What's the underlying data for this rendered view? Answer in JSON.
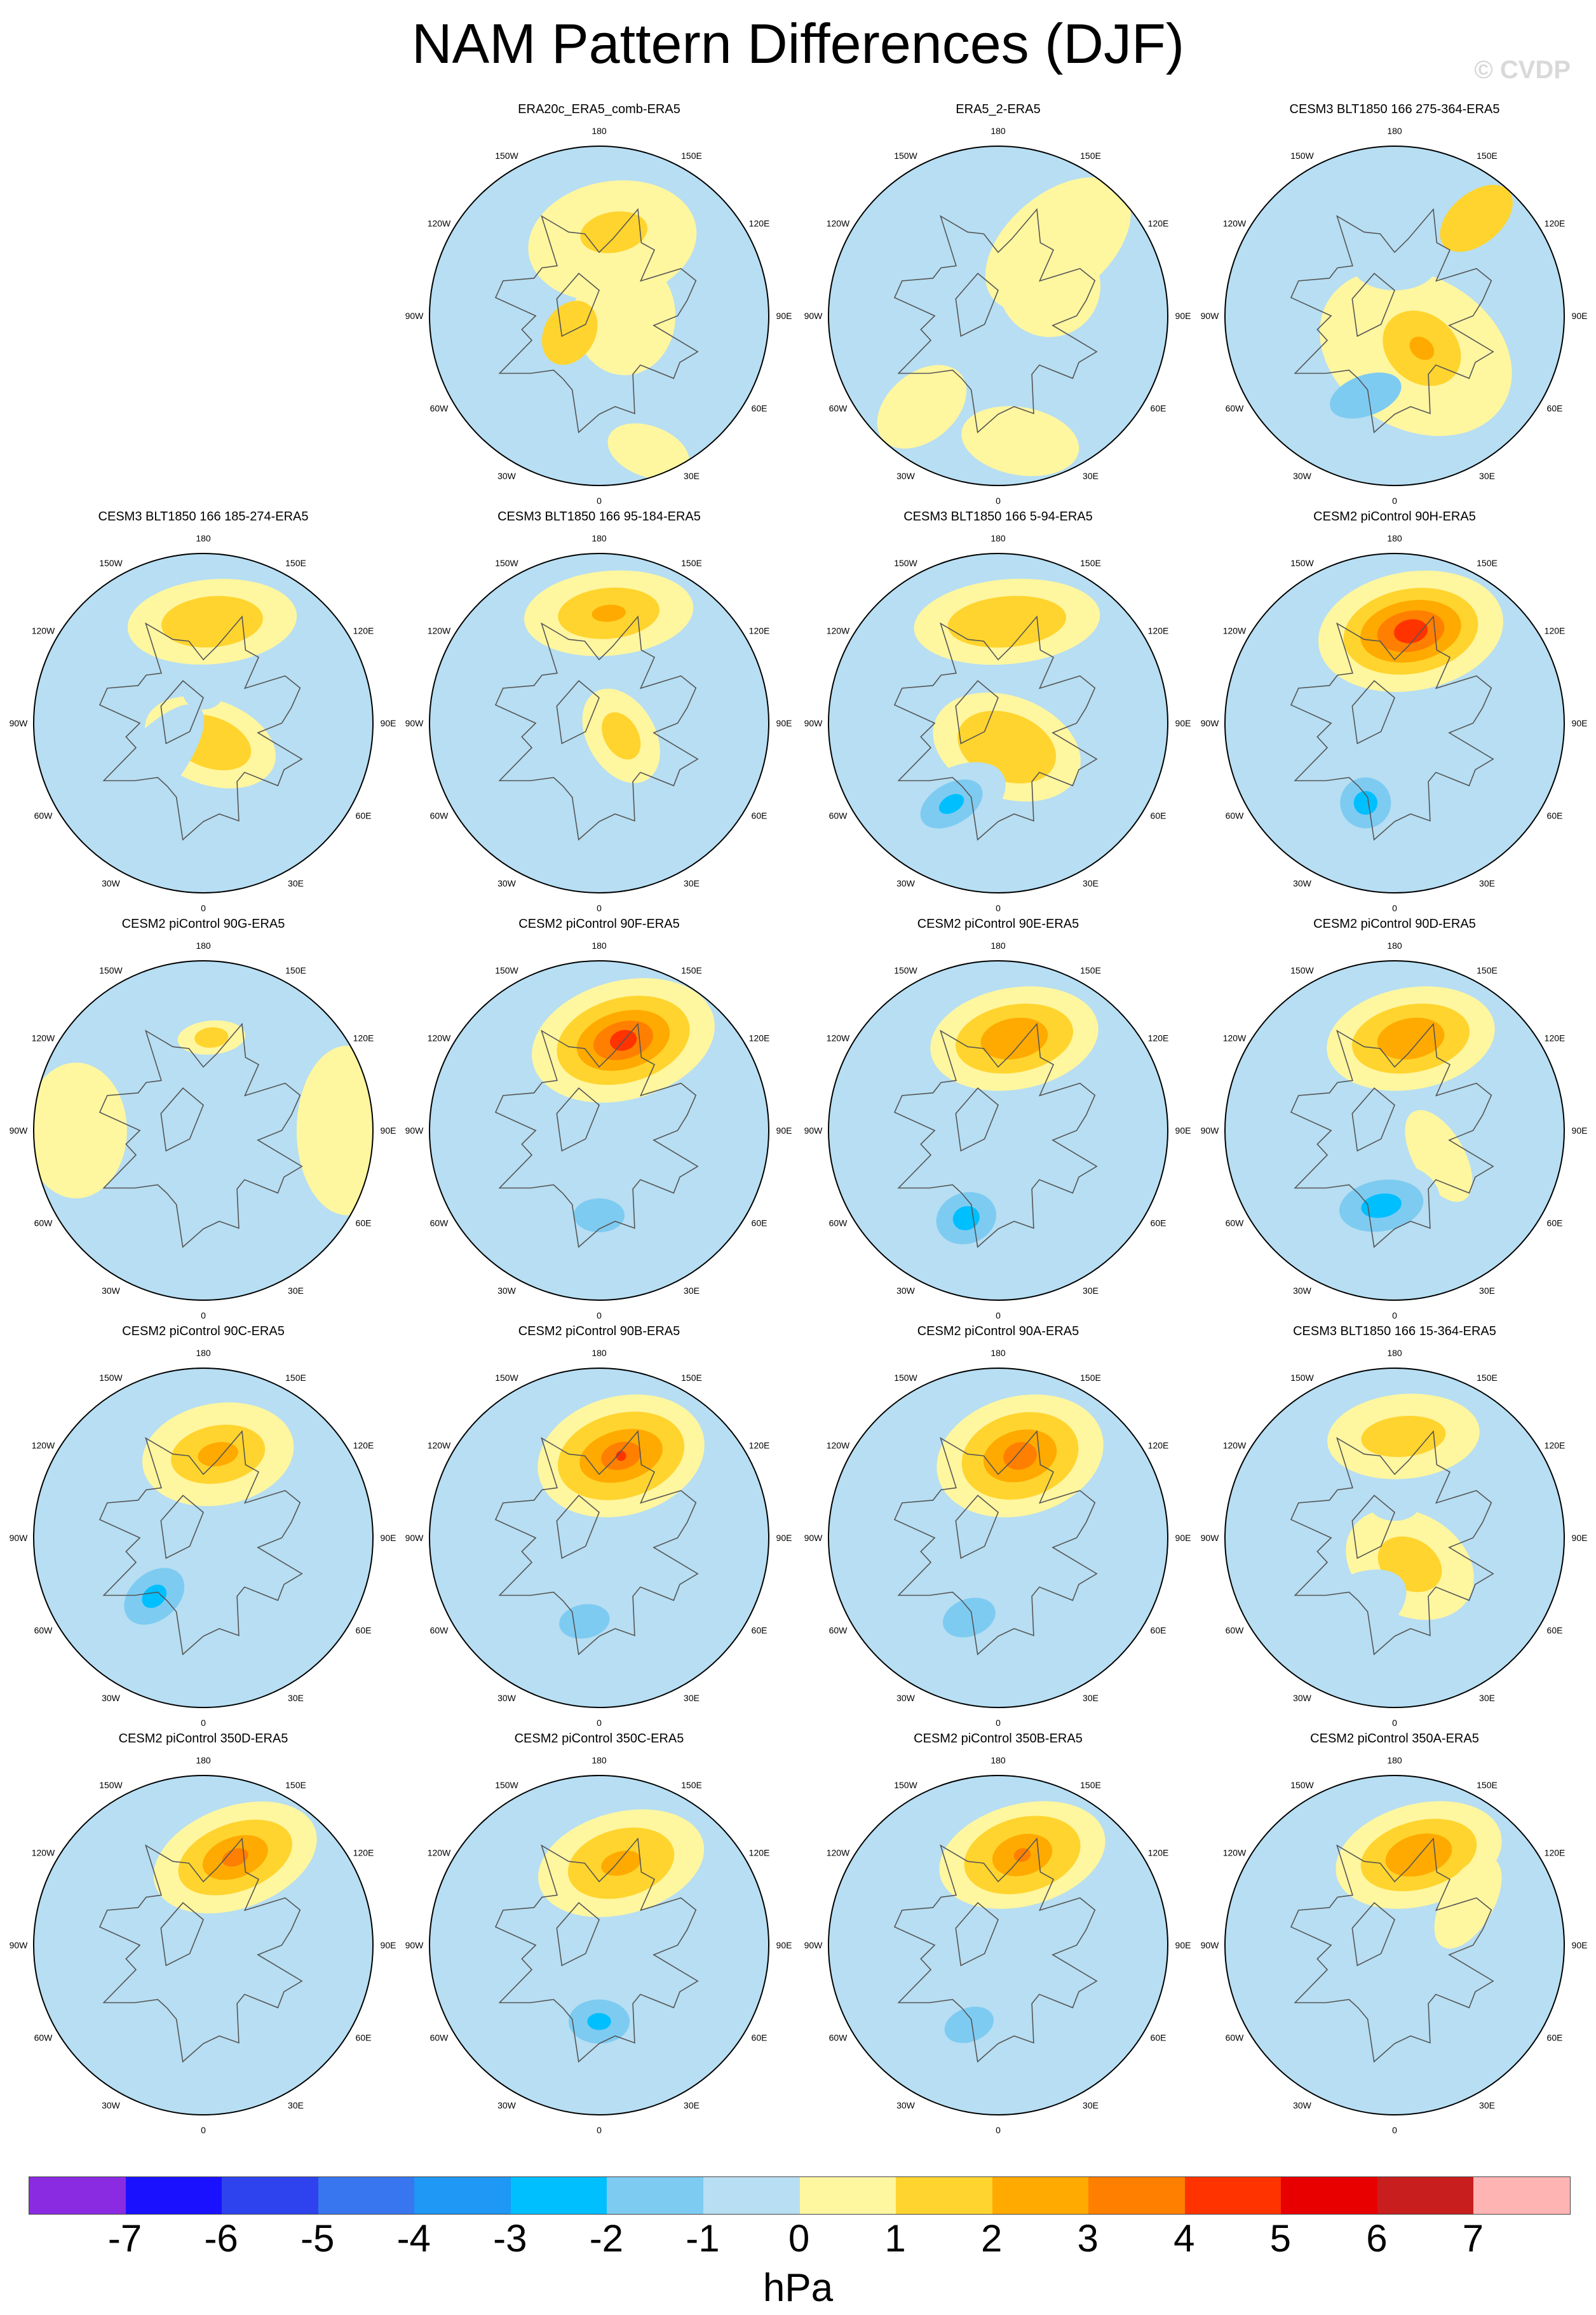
{
  "title": "NAM Pattern Differences (DJF)",
  "watermark": "© CVDP",
  "units": "hPa",
  "longitude_labels": [
    "180",
    "150E",
    "120E",
    "90E",
    "60E",
    "30E",
    "0",
    "30W",
    "60W",
    "90W",
    "120W",
    "150W"
  ],
  "colorbar": {
    "colors": [
      "#8a2be2",
      "#1a12ff",
      "#2e43ee",
      "#3776ee",
      "#1e97f5",
      "#00bfff",
      "#7ecbf2",
      "#b7def2",
      "#fff6a0",
      "#ffd42e",
      "#ffaa00",
      "#ff7f00",
      "#ff3300",
      "#e80000",
      "#c81e1e",
      "#ffb4b4"
    ],
    "labels": [
      "-7",
      "-6",
      "-5",
      "-4",
      "-3",
      "-2",
      "-1",
      "0",
      "1",
      "2",
      "3",
      "4",
      "5",
      "6",
      "7"
    ]
  },
  "panels": [
    {
      "title": "ERA20c_ERA5_comb-ERA5",
      "blobs": [
        {
          "lon": 170,
          "r": 0.45,
          "a": 0.5,
          "b": 0.35,
          "v": 1
        },
        {
          "lon": 170,
          "r": 0.5,
          "a": 0.2,
          "b": 0.12,
          "v": 2
        },
        {
          "lon": 90,
          "r": 0.15,
          "a": 0.35,
          "b": 0.3,
          "v": 1
        },
        {
          "lon": 300,
          "r": 0.2,
          "a": 0.2,
          "b": 0.15,
          "v": 2
        },
        {
          "lon": 20,
          "r": 0.85,
          "a": 0.25,
          "b": 0.15,
          "v": 1
        }
      ]
    },
    {
      "title": "ERA5_2-ERA5",
      "blobs": [
        {
          "lon": 140,
          "r": 0.55,
          "a": 0.5,
          "b": 0.3,
          "v": 1
        },
        {
          "lon": 120,
          "r": 0.35,
          "a": 0.3,
          "b": 0.3,
          "v": 1
        },
        {
          "lon": 320,
          "r": 0.7,
          "a": 0.3,
          "b": 0.2,
          "v": 1
        },
        {
          "lon": 10,
          "r": 0.75,
          "a": 0.35,
          "b": 0.2,
          "v": 1
        }
      ]
    },
    {
      "title": "CESM3 BLT1850 166 275-364-ERA5",
      "blobs": [
        {
          "lon": 30,
          "r": 0.25,
          "a": 0.6,
          "b": 0.45,
          "v": 1
        },
        {
          "lon": 40,
          "r": 0.25,
          "a": 0.25,
          "b": 0.2,
          "v": 2
        },
        {
          "lon": 40,
          "r": 0.25,
          "a": 0.08,
          "b": 0.06,
          "v": 3
        },
        {
          "lon": 180,
          "r": 0.3,
          "a": 0.25,
          "b": 0.15,
          "v": -1
        },
        {
          "lon": 340,
          "r": 0.5,
          "a": 0.22,
          "b": 0.12,
          "v": -2
        },
        {
          "lon": 140,
          "r": 0.75,
          "a": 0.25,
          "b": 0.15,
          "v": 2
        }
      ]
    },
    {
      "title": "CESM3 BLT1850 166 185-274-ERA5",
      "blobs": [
        {
          "lon": 175,
          "r": 0.6,
          "a": 0.5,
          "b": 0.25,
          "v": 1
        },
        {
          "lon": 175,
          "r": 0.6,
          "a": 0.3,
          "b": 0.15,
          "v": 2
        },
        {
          "lon": 20,
          "r": 0.12,
          "a": 0.4,
          "b": 0.25,
          "v": 1
        },
        {
          "lon": 20,
          "r": 0.12,
          "a": 0.25,
          "b": 0.15,
          "v": 2
        },
        {
          "lon": 180,
          "r": 0.18,
          "a": 0.12,
          "b": 0.1,
          "v": -1
        },
        {
          "lon": 310,
          "r": 0.45,
          "a": 0.5,
          "b": 0.18,
          "v": -1
        }
      ]
    },
    {
      "title": "CESM3 BLT1850 166 95-184-ERA5",
      "blobs": [
        {
          "lon": 175,
          "r": 0.65,
          "a": 0.5,
          "b": 0.25,
          "v": 1
        },
        {
          "lon": 175,
          "r": 0.65,
          "a": 0.3,
          "b": 0.15,
          "v": 2
        },
        {
          "lon": 175,
          "r": 0.65,
          "a": 0.1,
          "b": 0.05,
          "v": 3
        },
        {
          "lon": 60,
          "r": 0.15,
          "a": 0.3,
          "b": 0.2,
          "v": 1
        },
        {
          "lon": 60,
          "r": 0.15,
          "a": 0.15,
          "b": 0.1,
          "v": 2
        },
        {
          "lon": 0,
          "r": 0.55,
          "a": 0.4,
          "b": 0.15,
          "v": -1
        }
      ]
    },
    {
      "title": "CESM3 BLT1850 166 5-94-ERA5",
      "blobs": [
        {
          "lon": 175,
          "r": 0.6,
          "a": 0.55,
          "b": 0.25,
          "v": 1
        },
        {
          "lon": 175,
          "r": 0.6,
          "a": 0.35,
          "b": 0.15,
          "v": 2
        },
        {
          "lon": 20,
          "r": 0.15,
          "a": 0.45,
          "b": 0.3,
          "v": 1
        },
        {
          "lon": 20,
          "r": 0.15,
          "a": 0.3,
          "b": 0.2,
          "v": 2
        },
        {
          "lon": 330,
          "r": 0.55,
          "a": 0.35,
          "b": 0.2,
          "v": -1
        },
        {
          "lon": 330,
          "r": 0.55,
          "a": 0.2,
          "b": 0.12,
          "v": -2
        },
        {
          "lon": 330,
          "r": 0.55,
          "a": 0.08,
          "b": 0.05,
          "v": -3
        }
      ]
    },
    {
      "title": "CESM2 piControl 90H-ERA5",
      "blobs": [
        {
          "lon": 170,
          "r": 0.55,
          "a": 0.55,
          "b": 0.35,
          "v": 1
        },
        {
          "lon": 170,
          "r": 0.55,
          "a": 0.4,
          "b": 0.25,
          "v": 2
        },
        {
          "lon": 170,
          "r": 0.55,
          "a": 0.3,
          "b": 0.18,
          "v": 3
        },
        {
          "lon": 170,
          "r": 0.55,
          "a": 0.2,
          "b": 0.12,
          "v": 4
        },
        {
          "lon": 170,
          "r": 0.55,
          "a": 0.1,
          "b": 0.07,
          "v": 5
        },
        {
          "lon": 340,
          "r": 0.5,
          "a": 0.3,
          "b": 0.3,
          "v": -1
        },
        {
          "lon": 340,
          "r": 0.5,
          "a": 0.15,
          "b": 0.15,
          "v": -2
        },
        {
          "lon": 340,
          "r": 0.5,
          "a": 0.07,
          "b": 0.07,
          "v": -3
        }
      ]
    },
    {
      "title": "CESM2 piControl 90G-ERA5",
      "blobs": [
        {
          "lon": 175,
          "r": 0.55,
          "a": 0.2,
          "b": 0.1,
          "v": 1
        },
        {
          "lon": 175,
          "r": 0.55,
          "a": 0.1,
          "b": 0.06,
          "v": 2
        },
        {
          "lon": 90,
          "r": 0.85,
          "a": 0.5,
          "b": 0.3,
          "v": 1
        },
        {
          "lon": 270,
          "r": 0.75,
          "a": 0.4,
          "b": 0.3,
          "v": 1
        },
        {
          "lon": 330,
          "r": 0.3,
          "a": 0.25,
          "b": 0.2,
          "v": -1
        }
      ]
    },
    {
      "title": "CESM2 piControl 90F-ERA5",
      "blobs": [
        {
          "lon": 165,
          "r": 0.55,
          "a": 0.55,
          "b": 0.35,
          "v": 1
        },
        {
          "lon": 165,
          "r": 0.55,
          "a": 0.4,
          "b": 0.25,
          "v": 2
        },
        {
          "lon": 165,
          "r": 0.55,
          "a": 0.28,
          "b": 0.17,
          "v": 3
        },
        {
          "lon": 165,
          "r": 0.55,
          "a": 0.18,
          "b": 0.11,
          "v": 4
        },
        {
          "lon": 165,
          "r": 0.55,
          "a": 0.08,
          "b": 0.06,
          "v": 5
        },
        {
          "lon": 0,
          "r": 0.5,
          "a": 0.3,
          "b": 0.2,
          "v": -1
        },
        {
          "lon": 0,
          "r": 0.5,
          "a": 0.15,
          "b": 0.1,
          "v": -2
        }
      ]
    },
    {
      "title": "CESM2 piControl 90E-ERA5",
      "blobs": [
        {
          "lon": 170,
          "r": 0.55,
          "a": 0.5,
          "b": 0.3,
          "v": 1
        },
        {
          "lon": 170,
          "r": 0.55,
          "a": 0.35,
          "b": 0.2,
          "v": 2
        },
        {
          "lon": 170,
          "r": 0.55,
          "a": 0.2,
          "b": 0.12,
          "v": 3
        },
        {
          "lon": 340,
          "r": 0.55,
          "a": 0.3,
          "b": 0.25,
          "v": -1
        },
        {
          "lon": 340,
          "r": 0.55,
          "a": 0.18,
          "b": 0.15,
          "v": -2
        },
        {
          "lon": 340,
          "r": 0.55,
          "a": 0.08,
          "b": 0.07,
          "v": -3
        }
      ]
    },
    {
      "title": "CESM2 piControl 90D-ERA5",
      "blobs": [
        {
          "lon": 170,
          "r": 0.55,
          "a": 0.5,
          "b": 0.3,
          "v": 1
        },
        {
          "lon": 170,
          "r": 0.55,
          "a": 0.35,
          "b": 0.2,
          "v": 2
        },
        {
          "lon": 170,
          "r": 0.55,
          "a": 0.2,
          "b": 0.12,
          "v": 3
        },
        {
          "lon": 60,
          "r": 0.3,
          "a": 0.3,
          "b": 0.15,
          "v": 1
        },
        {
          "lon": 350,
          "r": 0.45,
          "a": 0.35,
          "b": 0.25,
          "v": -1
        },
        {
          "lon": 350,
          "r": 0.45,
          "a": 0.25,
          "b": 0.15,
          "v": -2
        },
        {
          "lon": 350,
          "r": 0.45,
          "a": 0.12,
          "b": 0.07,
          "v": -3
        }
      ]
    },
    {
      "title": "CESM2 piControl 90C-ERA5",
      "blobs": [
        {
          "lon": 170,
          "r": 0.5,
          "a": 0.45,
          "b": 0.3,
          "v": 1
        },
        {
          "lon": 170,
          "r": 0.5,
          "a": 0.28,
          "b": 0.17,
          "v": 2
        },
        {
          "lon": 170,
          "r": 0.5,
          "a": 0.12,
          "b": 0.07,
          "v": 3
        },
        {
          "lon": 320,
          "r": 0.45,
          "a": 0.35,
          "b": 0.25,
          "v": -1
        },
        {
          "lon": 320,
          "r": 0.45,
          "a": 0.2,
          "b": 0.14,
          "v": -2
        },
        {
          "lon": 320,
          "r": 0.45,
          "a": 0.08,
          "b": 0.06,
          "v": -3
        }
      ]
    },
    {
      "title": "CESM2 piControl 90B-ERA5",
      "blobs": [
        {
          "lon": 165,
          "r": 0.5,
          "a": 0.5,
          "b": 0.35,
          "v": 1
        },
        {
          "lon": 165,
          "r": 0.5,
          "a": 0.38,
          "b": 0.25,
          "v": 2
        },
        {
          "lon": 165,
          "r": 0.5,
          "a": 0.25,
          "b": 0.15,
          "v": 3
        },
        {
          "lon": 165,
          "r": 0.5,
          "a": 0.12,
          "b": 0.08,
          "v": 4
        },
        {
          "lon": 165,
          "r": 0.5,
          "a": 0.03,
          "b": 0.03,
          "v": 5
        },
        {
          "lon": 350,
          "r": 0.5,
          "a": 0.3,
          "b": 0.2,
          "v": -1
        },
        {
          "lon": 350,
          "r": 0.5,
          "a": 0.15,
          "b": 0.1,
          "v": -2
        }
      ]
    },
    {
      "title": "CESM2 piControl 90A-ERA5",
      "blobs": [
        {
          "lon": 165,
          "r": 0.5,
          "a": 0.5,
          "b": 0.35,
          "v": 1
        },
        {
          "lon": 165,
          "r": 0.5,
          "a": 0.35,
          "b": 0.25,
          "v": 2
        },
        {
          "lon": 165,
          "r": 0.5,
          "a": 0.22,
          "b": 0.15,
          "v": 3
        },
        {
          "lon": 165,
          "r": 0.5,
          "a": 0.1,
          "b": 0.08,
          "v": 4
        },
        {
          "lon": 340,
          "r": 0.5,
          "a": 0.3,
          "b": 0.2,
          "v": -1
        },
        {
          "lon": 340,
          "r": 0.5,
          "a": 0.16,
          "b": 0.11,
          "v": -2
        }
      ]
    },
    {
      "title": "CESM3 BLT1850 166 15-364-ERA5",
      "blobs": [
        {
          "lon": 175,
          "r": 0.6,
          "a": 0.45,
          "b": 0.25,
          "v": 1
        },
        {
          "lon": 175,
          "r": 0.6,
          "a": 0.25,
          "b": 0.12,
          "v": 2
        },
        {
          "lon": 30,
          "r": 0.18,
          "a": 0.4,
          "b": 0.3,
          "v": 1
        },
        {
          "lon": 30,
          "r": 0.18,
          "a": 0.2,
          "b": 0.15,
          "v": 2
        },
        {
          "lon": 180,
          "r": 0.2,
          "a": 0.15,
          "b": 0.1,
          "v": -1
        },
        {
          "lon": 330,
          "r": 0.5,
          "a": 0.35,
          "b": 0.2,
          "v": -1
        }
      ]
    },
    {
      "title": "CESM2 piControl 350D-ERA5",
      "blobs": [
        {
          "lon": 160,
          "r": 0.55,
          "a": 0.5,
          "b": 0.3,
          "v": 1
        },
        {
          "lon": 160,
          "r": 0.55,
          "a": 0.35,
          "b": 0.2,
          "v": 2
        },
        {
          "lon": 160,
          "r": 0.55,
          "a": 0.2,
          "b": 0.12,
          "v": 3
        },
        {
          "lon": 160,
          "r": 0.55,
          "a": 0.08,
          "b": 0.05,
          "v": 4
        },
        {
          "lon": 340,
          "r": 0.5,
          "a": 0.3,
          "b": 0.2,
          "v": -1
        }
      ]
    },
    {
      "title": "CESM2 piControl 350C-ERA5",
      "blobs": [
        {
          "lon": 165,
          "r": 0.5,
          "a": 0.5,
          "b": 0.3,
          "v": 1
        },
        {
          "lon": 165,
          "r": 0.5,
          "a": 0.32,
          "b": 0.2,
          "v": 2
        },
        {
          "lon": 165,
          "r": 0.5,
          "a": 0.12,
          "b": 0.07,
          "v": 3
        },
        {
          "lon": 0,
          "r": 0.45,
          "a": 0.3,
          "b": 0.25,
          "v": -1
        },
        {
          "lon": 0,
          "r": 0.45,
          "a": 0.18,
          "b": 0.13,
          "v": -2
        },
        {
          "lon": 0,
          "r": 0.45,
          "a": 0.07,
          "b": 0.05,
          "v": -3
        }
      ]
    },
    {
      "title": "CESM2 piControl 350B-ERA5",
      "blobs": [
        {
          "lon": 165,
          "r": 0.55,
          "a": 0.5,
          "b": 0.3,
          "v": 1
        },
        {
          "lon": 165,
          "r": 0.55,
          "a": 0.35,
          "b": 0.22,
          "v": 2
        },
        {
          "lon": 165,
          "r": 0.55,
          "a": 0.18,
          "b": 0.12,
          "v": 3
        },
        {
          "lon": 165,
          "r": 0.55,
          "a": 0.05,
          "b": 0.04,
          "v": 4
        },
        {
          "lon": 340,
          "r": 0.5,
          "a": 0.3,
          "b": 0.2,
          "v": -1
        },
        {
          "lon": 340,
          "r": 0.5,
          "a": 0.15,
          "b": 0.1,
          "v": -2
        }
      ]
    },
    {
      "title": "CESM2 piControl 350A-ERA5",
      "blobs": [
        {
          "lon": 165,
          "r": 0.55,
          "a": 0.5,
          "b": 0.3,
          "v": 1
        },
        {
          "lon": 165,
          "r": 0.55,
          "a": 0.35,
          "b": 0.2,
          "v": 2
        },
        {
          "lon": 165,
          "r": 0.55,
          "a": 0.2,
          "b": 0.12,
          "v": 3
        },
        {
          "lon": 120,
          "r": 0.5,
          "a": 0.3,
          "b": 0.15,
          "v": 1
        },
        {
          "lon": 340,
          "r": 0.4,
          "a": 0.3,
          "b": 0.2,
          "v": -1
        }
      ]
    }
  ]
}
